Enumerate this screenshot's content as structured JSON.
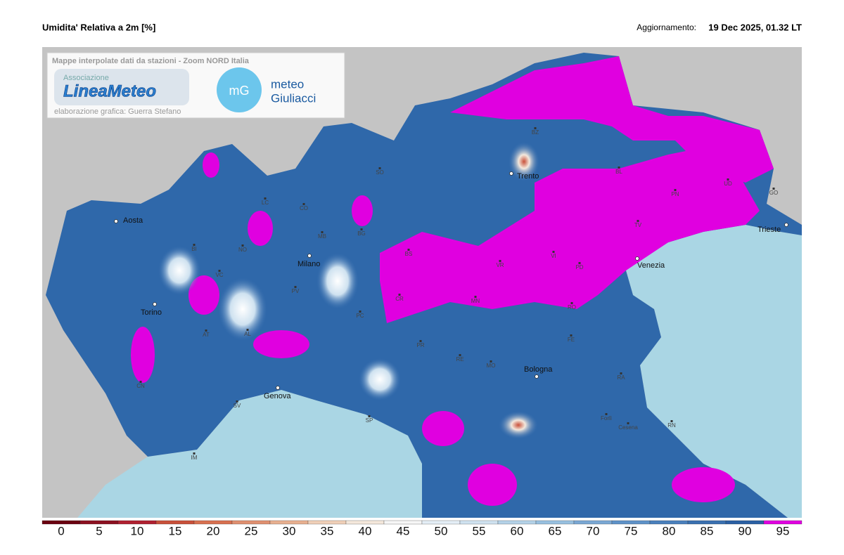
{
  "header": {
    "title": "Umidita' Relativa a 2m [%]",
    "update_label": "Aggiornamento:",
    "update_value": "19 Dec 2025, 01.32 LT"
  },
  "credits": {
    "caption": "Mappe interpolate dati da stazioni - Zoom NORD Italia",
    "association": "Associazione",
    "linea_meteo": "LineaMeteo",
    "author": "elaborazione grafica: Guerra Stefano",
    "mg": "mG",
    "meteo": "meteo",
    "giuliacci": "Giuliacci"
  },
  "major_cities": [
    "Aosta",
    "Torino",
    "Milano",
    "Genova",
    "Trento",
    "Venezia",
    "Bologna",
    "Trieste"
  ],
  "provinces": [
    "BI",
    "NO",
    "VC",
    "AT",
    "AL",
    "CN",
    "SV",
    "IM",
    "SO",
    "CO",
    "BG",
    "MB",
    "BS",
    "CR",
    "PV",
    "PC",
    "PR",
    "RE",
    "MO",
    "MN",
    "VR",
    "VI",
    "PD",
    "TV",
    "BL",
    "BZ",
    "PN",
    "UD",
    "GO",
    "RO",
    "FE",
    "RA",
    "Forlì",
    "Cesena",
    "RN",
    "SP",
    "LC"
  ],
  "colorbar": {
    "range": [
      0,
      100
    ],
    "ticks": [
      0,
      5,
      10,
      15,
      20,
      25,
      30,
      35,
      40,
      45,
      50,
      55,
      60,
      65,
      70,
      75,
      80,
      85,
      90,
      95
    ],
    "colors": [
      "#6a0010",
      "#8c1020",
      "#b02030",
      "#c8503a",
      "#d87050",
      "#e09070",
      "#e8b090",
      "#f0d0b8",
      "#f4e8dc",
      "#f6f6f6",
      "#e4eef6",
      "#cfe2f0",
      "#b4d2e8",
      "#98c0e0",
      "#7aa8d4",
      "#5e92c8",
      "#4a80bc",
      "#3a70b0",
      "#2a60a4",
      "#e000e0"
    ]
  }
}
